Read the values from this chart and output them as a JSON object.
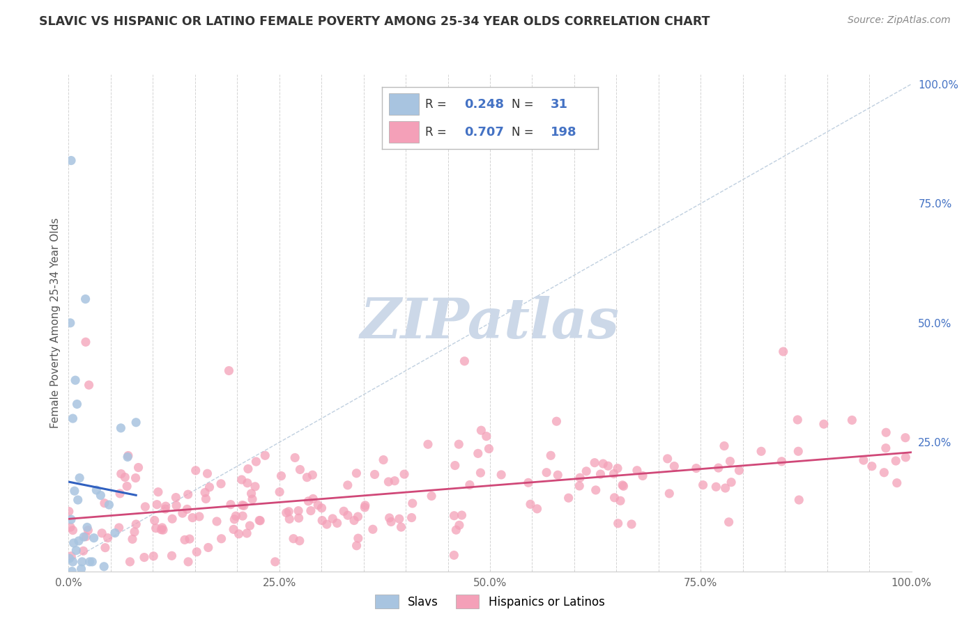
{
  "title": "SLAVIC VS HISPANIC OR LATINO FEMALE POVERTY AMONG 25-34 YEAR OLDS CORRELATION CHART",
  "source": "Source: ZipAtlas.com",
  "ylabel": "Female Poverty Among 25-34 Year Olds",
  "xlim": [
    0,
    1
  ],
  "ylim": [
    -0.02,
    1.02
  ],
  "xtick_labels": [
    "0.0%",
    "",
    "",
    "",
    "",
    "25.0%",
    "",
    "",
    "",
    "",
    "50.0%",
    "",
    "",
    "",
    "",
    "75.0%",
    "",
    "",
    "",
    "",
    "100.0%"
  ],
  "xtick_positions": [
    0,
    0.05,
    0.1,
    0.15,
    0.2,
    0.25,
    0.3,
    0.35,
    0.4,
    0.45,
    0.5,
    0.55,
    0.6,
    0.65,
    0.7,
    0.75,
    0.8,
    0.85,
    0.9,
    0.95,
    1.0
  ],
  "ytick_labels": [
    "100.0%",
    "75.0%",
    "50.0%",
    "25.0%"
  ],
  "ytick_positions": [
    1.0,
    0.75,
    0.5,
    0.25
  ],
  "slavic_R": "0.248",
  "slavic_N": "31",
  "hispanic_R": "0.707",
  "hispanic_N": "198",
  "slavic_color": "#a8c4e0",
  "hispanic_color": "#f4a0b8",
  "slavic_line_color": "#3060c0",
  "hispanic_line_color": "#d04878",
  "background_color": "#ffffff",
  "grid_color": "#c8c8c8",
  "watermark": "ZIPatlas",
  "watermark_color": "#ccd8e8",
  "legend_label_slavic": "Slavs",
  "legend_label_hispanic": "Hispanics or Latinos"
}
